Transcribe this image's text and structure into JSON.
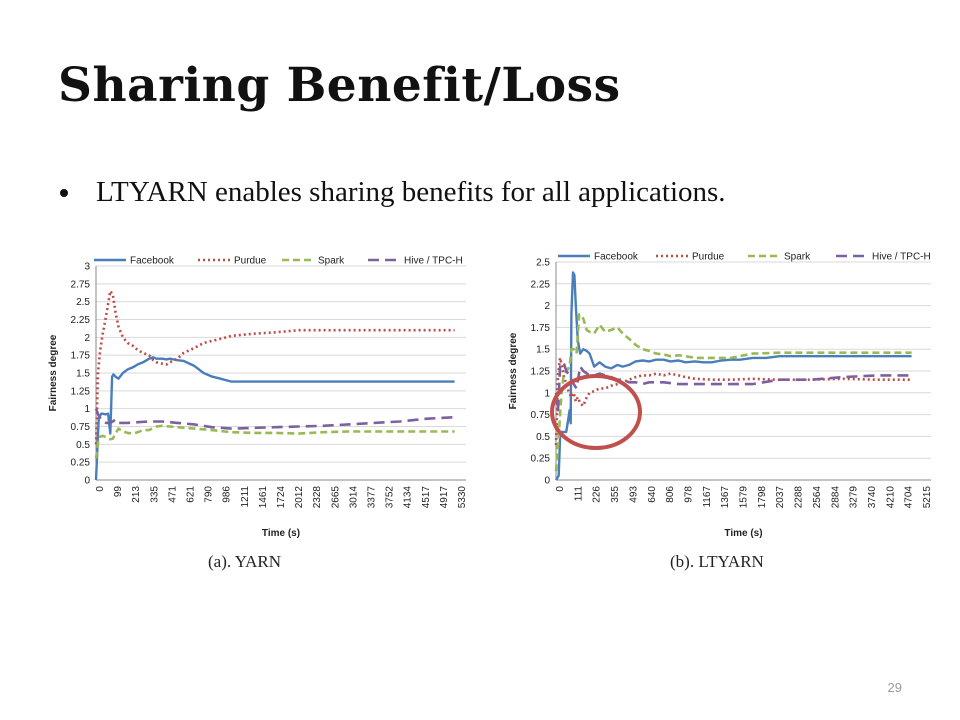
{
  "slide": {
    "title": "Sharing Benefit/Loss",
    "bullet": "LTYARN enables sharing benefits for all applications.",
    "caption_a": "(a). YARN",
    "caption_b": "(b). LTYARN",
    "page_number": "29"
  },
  "chart_data": [
    {
      "type": "line",
      "ylabel": "Fairness degree",
      "xlabel": "Time (s)",
      "ylim": [
        0,
        3
      ],
      "y_ticks": [
        "0",
        "0.25",
        "0.5",
        "0.75",
        "1",
        "1.25",
        "1.5",
        "1.75",
        "2",
        "2.25",
        "2.5",
        "2.75",
        "3"
      ],
      "x_ticks": [
        "0",
        "99",
        "213",
        "335",
        "471",
        "621",
        "790",
        "986",
        "1211",
        "1461",
        "1724",
        "2012",
        "2328",
        "2665",
        "3014",
        "3377",
        "3752",
        "4134",
        "4517",
        "4917",
        "5330"
      ],
      "x_range": [
        0,
        5500
      ],
      "grid": true,
      "legend": "top",
      "series": [
        {
          "name": "Facebook",
          "color": "#4a7ebb",
          "style": "solid",
          "x": [
            0,
            40,
            60,
            80,
            100,
            140,
            180,
            200,
            213,
            240,
            260,
            290,
            335,
            400,
            471,
            550,
            621,
            700,
            790,
            850,
            900,
            986,
            1050,
            1100,
            1211,
            1300,
            1461,
            1600,
            1724,
            1850,
            2012,
            2328,
            2665,
            3014,
            3377,
            3752,
            4134,
            4517,
            4917,
            5330
          ],
          "y": [
            0,
            0.85,
            0.9,
            0.93,
            0.93,
            0.92,
            0.93,
            0.75,
            0.65,
            1.45,
            1.48,
            1.45,
            1.42,
            1.5,
            1.55,
            1.58,
            1.62,
            1.65,
            1.7,
            1.72,
            1.7,
            1.7,
            1.69,
            1.7,
            1.68,
            1.67,
            1.6,
            1.5,
            1.45,
            1.42,
            1.38,
            1.38,
            1.38,
            1.38,
            1.38,
            1.38,
            1.38,
            1.38,
            1.38,
            1.38
          ]
        },
        {
          "name": "Purdue",
          "color": "#be4b48",
          "style": "dotted",
          "x": [
            0,
            30,
            60,
            99,
            150,
            213,
            250,
            290,
            335,
            400,
            471,
            550,
            621,
            700,
            790,
            850,
            900,
            986,
            1050,
            1100,
            1211,
            1300,
            1461,
            1600,
            1724,
            1850,
            2012,
            2328,
            2665,
            3014,
            3377,
            3752,
            4134,
            4517,
            4917,
            5330
          ],
          "y": [
            0.5,
            1.5,
            1.8,
            2.05,
            2.3,
            2.65,
            2.6,
            2.35,
            2.15,
            2.0,
            1.92,
            1.88,
            1.82,
            1.78,
            1.75,
            1.68,
            1.65,
            1.63,
            1.62,
            1.65,
            1.7,
            1.78,
            1.85,
            1.92,
            1.95,
            1.98,
            2.02,
            2.05,
            2.07,
            2.1,
            2.1,
            2.1,
            2.1,
            2.1,
            2.1,
            2.1
          ]
        },
        {
          "name": "Spark",
          "color": "#98b954",
          "style": "dashed",
          "x": [
            0,
            40,
            99,
            150,
            213,
            250,
            290,
            335,
            400,
            471,
            550,
            621,
            700,
            790,
            850,
            900,
            986,
            1100,
            1211,
            1461,
            1724,
            2012,
            2328,
            2665,
            3014,
            3377,
            3752,
            4134,
            4517,
            4917,
            5330
          ],
          "y": [
            0.3,
            0.6,
            0.62,
            0.6,
            0.57,
            0.58,
            0.65,
            0.72,
            0.68,
            0.66,
            0.65,
            0.67,
            0.7,
            0.7,
            0.73,
            0.75,
            0.76,
            0.75,
            0.74,
            0.72,
            0.7,
            0.67,
            0.66,
            0.66,
            0.65,
            0.67,
            0.68,
            0.68,
            0.68,
            0.68,
            0.68
          ]
        },
        {
          "name": "Hive / TPC-H",
          "color": "#7d60a0",
          "style": "longdash",
          "x": [
            0,
            40,
            99,
            150,
            213,
            250,
            290,
            335,
            471,
            621,
            790,
            986,
            1211,
            1461,
            1724,
            2012,
            2328,
            2665,
            3014,
            3377,
            3752,
            4134,
            4517,
            4917,
            5330
          ],
          "y": [
            1.0,
            0.9,
            0.82,
            0.8,
            0.8,
            0.82,
            0.85,
            0.8,
            0.8,
            0.81,
            0.82,
            0.82,
            0.8,
            0.78,
            0.74,
            0.72,
            0.73,
            0.74,
            0.75,
            0.76,
            0.78,
            0.8,
            0.82,
            0.86,
            0.88
          ]
        }
      ]
    },
    {
      "type": "line",
      "ylabel": "Fairness degree",
      "xlabel": "Time (s)",
      "ylim": [
        0,
        2.5
      ],
      "y_ticks": [
        "0",
        "0.25",
        "0.5",
        "0.75",
        "1",
        "1.25",
        "1.5",
        "1.75",
        "2",
        "2.25",
        "2.5"
      ],
      "x_ticks": [
        "0",
        "111",
        "226",
        "355",
        "493",
        "640",
        "806",
        "978",
        "1167",
        "1367",
        "1579",
        "1798",
        "2037",
        "2288",
        "2564",
        "2884",
        "3279",
        "3740",
        "4210",
        "4704",
        "5215"
      ],
      "x_range": [
        0,
        5500
      ],
      "grid": true,
      "legend": "top",
      "series": [
        {
          "name": "Facebook",
          "color": "#4a7ebb",
          "style": "solid",
          "x": [
            0,
            40,
            60,
            80,
            111,
            150,
            180,
            200,
            215,
            226,
            250,
            270,
            290,
            320,
            355,
            400,
            450,
            493,
            560,
            640,
            720,
            806,
            900,
            978,
            1070,
            1167,
            1270,
            1367,
            1470,
            1579,
            1680,
            1798,
            1900,
            2037,
            2160,
            2288,
            2420,
            2564,
            2700,
            2884,
            3080,
            3279,
            3740,
            4210,
            4704,
            5215
          ],
          "y": [
            0,
            0.05,
            0.5,
            0.55,
            0.55,
            0.55,
            0.7,
            0.8,
            0.65,
            1.9,
            2.38,
            2.35,
            2.0,
            1.6,
            1.45,
            1.5,
            1.48,
            1.45,
            1.3,
            1.35,
            1.3,
            1.28,
            1.32,
            1.3,
            1.32,
            1.36,
            1.37,
            1.36,
            1.38,
            1.38,
            1.36,
            1.37,
            1.35,
            1.36,
            1.35,
            1.35,
            1.37,
            1.38,
            1.38,
            1.4,
            1.4,
            1.42,
            1.42,
            1.42,
            1.42,
            1.42
          ]
        },
        {
          "name": "Purdue",
          "color": "#be4b48",
          "style": "dotted",
          "x": [
            0,
            30,
            60,
            90,
            111,
            150,
            190,
            226,
            260,
            290,
            320,
            355,
            400,
            450,
            493,
            560,
            640,
            720,
            806,
            900,
            978,
            1070,
            1167,
            1270,
            1367,
            1470,
            1579,
            1680,
            1798,
            1900,
            2037,
            2288,
            2564,
            2884,
            3279,
            3740,
            4210,
            4704,
            5215
          ],
          "y": [
            0.4,
            1.2,
            1.4,
            1.3,
            1.2,
            1.1,
            1.0,
            0.95,
            1.0,
            0.9,
            0.95,
            0.88,
            0.85,
            0.95,
            1.0,
            1.02,
            1.05,
            1.05,
            1.08,
            1.1,
            1.12,
            1.15,
            1.18,
            1.2,
            1.2,
            1.22,
            1.2,
            1.22,
            1.2,
            1.18,
            1.16,
            1.15,
            1.15,
            1.16,
            1.15,
            1.15,
            1.16,
            1.15,
            1.15
          ]
        },
        {
          "name": "Spark",
          "color": "#98b954",
          "style": "dashed",
          "x": [
            0,
            40,
            80,
            111,
            150,
            200,
            226,
            260,
            300,
            340,
            355,
            400,
            450,
            493,
            560,
            640,
            720,
            806,
            900,
            978,
            1070,
            1167,
            1270,
            1367,
            1470,
            1579,
            1680,
            1798,
            1900,
            2037,
            2288,
            2564,
            2884,
            3279,
            3740,
            4210,
            4704,
            5215
          ],
          "y": [
            0.1,
            0.5,
            1.0,
            1.2,
            1.25,
            1.3,
            1.5,
            1.5,
            1.45,
            1.9,
            1.9,
            1.85,
            1.72,
            1.7,
            1.68,
            1.78,
            1.7,
            1.72,
            1.75,
            1.68,
            1.62,
            1.55,
            1.5,
            1.48,
            1.45,
            1.44,
            1.42,
            1.43,
            1.42,
            1.4,
            1.4,
            1.4,
            1.45,
            1.46,
            1.46,
            1.46,
            1.46,
            1.46
          ]
        },
        {
          "name": "Hive / TPC-H",
          "color": "#7d60a0",
          "style": "longdash",
          "x": [
            0,
            30,
            60,
            111,
            150,
            200,
            226,
            260,
            300,
            355,
            400,
            493,
            560,
            640,
            720,
            806,
            900,
            978,
            1070,
            1167,
            1270,
            1367,
            1579,
            1798,
            2037,
            2288,
            2564,
            2884,
            3279,
            3740,
            4210,
            4704,
            5215
          ],
          "y": [
            1.0,
            0.8,
            1.3,
            1.35,
            1.25,
            1.2,
            1.15,
            1.1,
            1.05,
            1.3,
            1.25,
            1.2,
            1.2,
            1.22,
            1.2,
            1.18,
            1.15,
            1.15,
            1.12,
            1.12,
            1.1,
            1.12,
            1.12,
            1.1,
            1.1,
            1.1,
            1.1,
            1.1,
            1.15,
            1.15,
            1.18,
            1.2,
            1.2
          ]
        }
      ]
    }
  ],
  "annotation": {
    "shape": "circle",
    "color": "#c0504d"
  }
}
